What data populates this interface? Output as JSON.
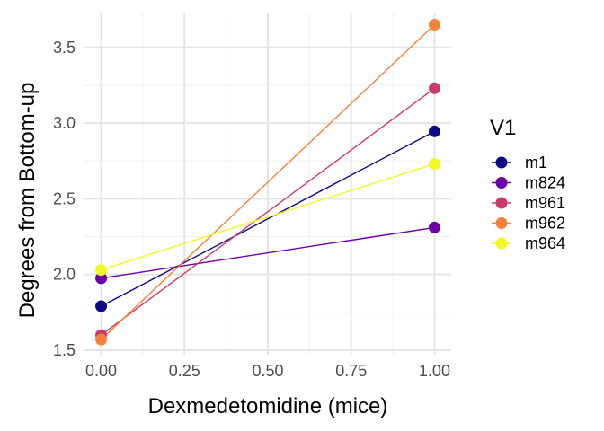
{
  "chart_data": {
    "type": "line",
    "xlabel": "Dexmedetomidine (mice)",
    "ylabel": "Degrees from Bottom-up",
    "xlim": [
      -0.05,
      1.05
    ],
    "ylim": [
      1.47,
      3.73
    ],
    "x_ticks": [
      0.0,
      0.25,
      0.5,
      0.75,
      1.0
    ],
    "x_tick_labels": [
      "0.00",
      "0.25",
      "0.50",
      "0.75",
      "1.00"
    ],
    "y_ticks": [
      1.5,
      2.0,
      2.5,
      3.0,
      3.5
    ],
    "y_tick_labels": [
      "1.5",
      "2.0",
      "2.5",
      "3.0",
      "3.5"
    ],
    "grid": true,
    "legend": {
      "title": "V1",
      "position": "right"
    },
    "series": [
      {
        "name": "m1",
        "color": "#0d0887",
        "x": [
          0,
          1
        ],
        "y": [
          1.79,
          2.945
        ]
      },
      {
        "name": "m824",
        "color": "#6a00a8",
        "x": [
          0,
          1
        ],
        "y": [
          1.975,
          2.31
        ]
      },
      {
        "name": "m961",
        "color": "#cc3a6b",
        "x": [
          0,
          1
        ],
        "y": [
          1.6,
          3.23
        ]
      },
      {
        "name": "m962",
        "color": "#f5813a",
        "x": [
          0,
          1
        ],
        "y": [
          1.57,
          3.65
        ]
      },
      {
        "name": "m964",
        "color": "#f0f921",
        "x": [
          0,
          1
        ],
        "y": [
          2.03,
          2.73
        ]
      }
    ]
  }
}
